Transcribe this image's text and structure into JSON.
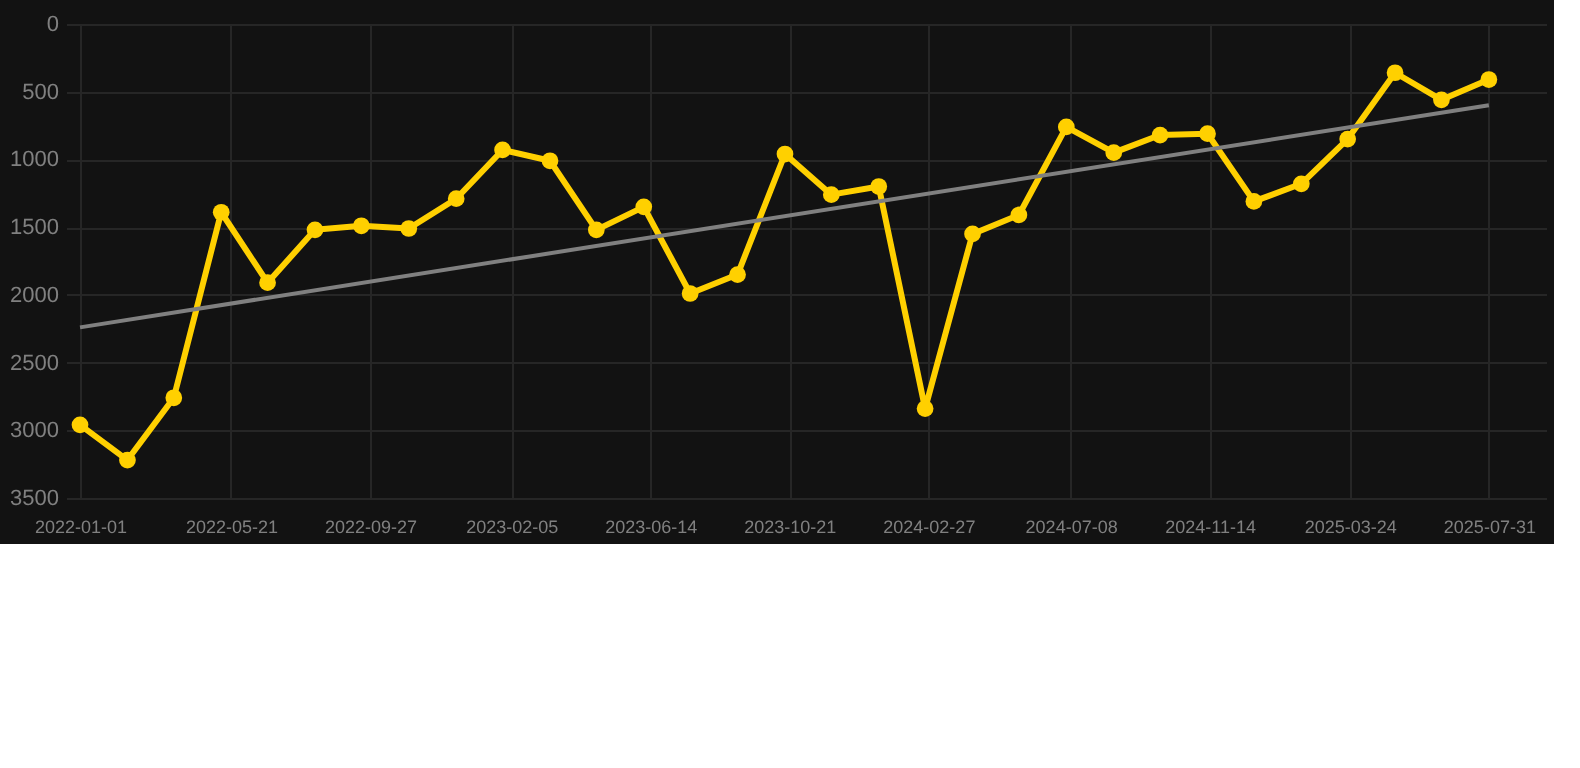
{
  "chart_data": {
    "type": "line",
    "x": [
      "2022-01-01",
      "2022-02-14",
      "2022-03-29",
      "2022-05-12",
      "2022-06-24",
      "2022-08-07",
      "2022-09-19",
      "2022-11-02",
      "2022-12-16",
      "2023-01-28",
      "2023-03-13",
      "2023-04-25",
      "2023-06-08",
      "2023-07-21",
      "2023-09-03",
      "2023-10-17",
      "2023-11-29",
      "2024-01-12",
      "2024-02-24",
      "2024-04-08",
      "2024-05-21",
      "2024-07-04",
      "2024-08-17",
      "2024-09-29",
      "2024-11-12",
      "2024-12-25",
      "2025-02-07",
      "2025-03-22",
      "2025-05-05",
      "2025-06-17",
      "2025-07-31"
    ],
    "series": [
      {
        "color": "#ffd000",
        "marker": "circle",
        "values": [
          2960,
          3220,
          2760,
          1390,
          1910,
          1520,
          1490,
          1510,
          1290,
          930,
          1010,
          1520,
          1350,
          1990,
          1850,
          960,
          1260,
          1200,
          2840,
          1550,
          1410,
          760,
          950,
          820,
          810,
          1310,
          1180,
          850,
          360,
          560,
          410
        ]
      },
      {
        "type": "line",
        "color": "#808080",
        "marker": "none",
        "x": [
          "2022-01-01",
          "2025-07-31"
        ],
        "values": [
          2240,
          600
        ]
      }
    ],
    "xlim": [
      "2021-12-19",
      "2025-09-22"
    ],
    "xticks": [
      "2022-01-01",
      "2022-05-21",
      "2022-09-27",
      "2023-02-05",
      "2023-06-14",
      "2023-10-21",
      "2024-02-27",
      "2024-07-08",
      "2024-11-14",
      "2025-03-24",
      "2025-07-31"
    ],
    "ylim": [
      3500,
      0
    ],
    "yticks": [
      0,
      500,
      1000,
      1500,
      2000,
      2500,
      3000,
      3500
    ],
    "grid": true
  }
}
